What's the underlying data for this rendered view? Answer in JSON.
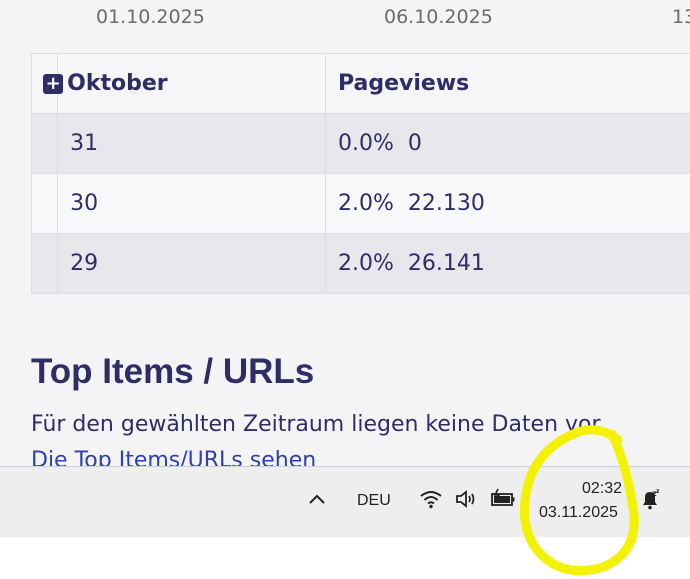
{
  "axis": {
    "ticks": [
      "01.10.2025",
      "06.10.2025",
      "13"
    ]
  },
  "table": {
    "header": {
      "month": "Oktober",
      "metric": "Pageviews"
    },
    "rows": [
      {
        "day": "31",
        "percent": "0.0%",
        "value": "0"
      },
      {
        "day": "30",
        "percent": "2.0%",
        "value": "22.130"
      },
      {
        "day": "29",
        "percent": "2.0%",
        "value": "26.141"
      }
    ]
  },
  "top_items": {
    "title": "Top Items / URLs",
    "empty_message": "Für den gewählten Zeitraum liegen keine Daten vor.",
    "link": "Die Top Items/URLs sehen"
  },
  "taskbar": {
    "language": "DEU",
    "time": "02:32",
    "date": "03.11.2025",
    "icons": [
      "chevron-up-icon",
      "wifi-icon",
      "volume-icon",
      "battery-icon",
      "notification-bell-icon"
    ]
  },
  "colors": {
    "text": "#2f2d66",
    "highlight": "#f3f200",
    "row_gray": "#e8e8ec"
  }
}
